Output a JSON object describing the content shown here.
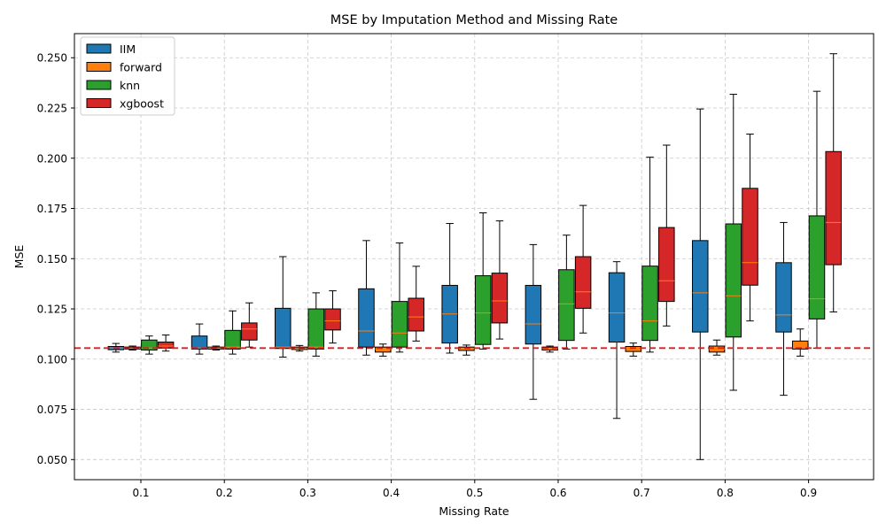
{
  "chart_data": {
    "type": "box",
    "title": "MSE by Imputation Method and Missing Rate",
    "xlabel": "Missing Rate",
    "ylabel": "MSE",
    "categories": [
      "0.1",
      "0.2",
      "0.3",
      "0.4",
      "0.5",
      "0.6",
      "0.7",
      "0.8",
      "0.9"
    ],
    "ylim": [
      0.04,
      0.262
    ],
    "yticks": [
      "0.050",
      "0.075",
      "0.100",
      "0.125",
      "0.150",
      "0.175",
      "0.200",
      "0.225",
      "0.250"
    ],
    "grid": true,
    "legend_position": "top-left",
    "median_color": "#ff7f0e",
    "reference_line": {
      "y": 0.1055,
      "color": "#e31a1c",
      "style": "dashed"
    },
    "series": [
      {
        "name": "IIM",
        "color": "#1f77b4",
        "boxes": [
          {
            "whislo": 0.1035,
            "q1": 0.1047,
            "med": 0.1055,
            "q3": 0.1063,
            "whishi": 0.1078
          },
          {
            "whislo": 0.1025,
            "q1": 0.105,
            "med": 0.1055,
            "q3": 0.1115,
            "whishi": 0.1175
          },
          {
            "whislo": 0.101,
            "q1": 0.1053,
            "med": 0.106,
            "q3": 0.1253,
            "whishi": 0.151
          },
          {
            "whislo": 0.102,
            "q1": 0.106,
            "med": 0.114,
            "q3": 0.135,
            "whishi": 0.159
          },
          {
            "whislo": 0.103,
            "q1": 0.108,
            "med": 0.1225,
            "q3": 0.1367,
            "whishi": 0.1675
          },
          {
            "whislo": 0.08,
            "q1": 0.1075,
            "med": 0.1175,
            "q3": 0.1367,
            "whishi": 0.157
          },
          {
            "whislo": 0.0705,
            "q1": 0.1085,
            "med": 0.123,
            "q3": 0.143,
            "whishi": 0.1485
          },
          {
            "whislo": 0.05,
            "q1": 0.1135,
            "med": 0.133,
            "q3": 0.159,
            "whishi": 0.2245
          },
          {
            "whislo": 0.082,
            "q1": 0.1135,
            "med": 0.122,
            "q3": 0.148,
            "whishi": 0.168
          }
        ]
      },
      {
        "name": "forward",
        "color": "#ff7f0e",
        "boxes": [
          {
            "whislo": 0.1045,
            "q1": 0.105,
            "med": 0.1055,
            "q3": 0.106,
            "whishi": 0.1065
          },
          {
            "whislo": 0.1045,
            "q1": 0.105,
            "med": 0.1055,
            "q3": 0.106,
            "whishi": 0.1065
          },
          {
            "whislo": 0.104,
            "q1": 0.1048,
            "med": 0.1053,
            "q3": 0.106,
            "whishi": 0.1068
          },
          {
            "whislo": 0.1015,
            "q1": 0.1035,
            "med": 0.105,
            "q3": 0.106,
            "whishi": 0.1075
          },
          {
            "whislo": 0.102,
            "q1": 0.1043,
            "med": 0.1053,
            "q3": 0.106,
            "whishi": 0.107
          },
          {
            "whislo": 0.1035,
            "q1": 0.1045,
            "med": 0.1053,
            "q3": 0.106,
            "whishi": 0.1065
          },
          {
            "whislo": 0.1015,
            "q1": 0.1038,
            "med": 0.1053,
            "q3": 0.1063,
            "whishi": 0.108
          },
          {
            "whislo": 0.102,
            "q1": 0.1035,
            "med": 0.105,
            "q3": 0.1065,
            "whishi": 0.1095
          },
          {
            "whislo": 0.1015,
            "q1": 0.105,
            "med": 0.1055,
            "q3": 0.109,
            "whishi": 0.115
          }
        ]
      },
      {
        "name": "knn",
        "color": "#2ca02c",
        "boxes": [
          {
            "whislo": 0.1025,
            "q1": 0.1045,
            "med": 0.1055,
            "q3": 0.1095,
            "whishi": 0.1115
          },
          {
            "whislo": 0.1025,
            "q1": 0.105,
            "med": 0.106,
            "q3": 0.1143,
            "whishi": 0.124
          },
          {
            "whislo": 0.1015,
            "q1": 0.105,
            "med": 0.106,
            "q3": 0.125,
            "whishi": 0.133
          },
          {
            "whislo": 0.1035,
            "q1": 0.106,
            "med": 0.113,
            "q3": 0.1287,
            "whishi": 0.1578
          },
          {
            "whislo": 0.105,
            "q1": 0.1073,
            "med": 0.123,
            "q3": 0.1415,
            "whishi": 0.1728
          },
          {
            "whislo": 0.105,
            "q1": 0.1093,
            "med": 0.1275,
            "q3": 0.1445,
            "whishi": 0.1617
          },
          {
            "whislo": 0.1035,
            "q1": 0.1093,
            "med": 0.119,
            "q3": 0.1463,
            "whishi": 0.2005
          },
          {
            "whislo": 0.0845,
            "q1": 0.111,
            "med": 0.1315,
            "q3": 0.1673,
            "whishi": 0.2318
          },
          {
            "whislo": 0.1055,
            "q1": 0.12,
            "med": 0.13,
            "q3": 0.1713,
            "whishi": 0.2333
          }
        ]
      },
      {
        "name": "xgboost",
        "color": "#d62728",
        "boxes": [
          {
            "whislo": 0.104,
            "q1": 0.1055,
            "med": 0.1065,
            "q3": 0.1085,
            "whishi": 0.112
          },
          {
            "whislo": 0.106,
            "q1": 0.1095,
            "med": 0.115,
            "q3": 0.118,
            "whishi": 0.128
          },
          {
            "whislo": 0.108,
            "q1": 0.1145,
            "med": 0.119,
            "q3": 0.125,
            "whishi": 0.134
          },
          {
            "whislo": 0.109,
            "q1": 0.114,
            "med": 0.121,
            "q3": 0.1303,
            "whishi": 0.1462
          },
          {
            "whislo": 0.11,
            "q1": 0.118,
            "med": 0.129,
            "q3": 0.1428,
            "whishi": 0.1688
          },
          {
            "whislo": 0.113,
            "q1": 0.1253,
            "med": 0.1335,
            "q3": 0.151,
            "whishi": 0.1765
          },
          {
            "whislo": 0.1165,
            "q1": 0.1287,
            "med": 0.139,
            "q3": 0.1655,
            "whishi": 0.2065
          },
          {
            "whislo": 0.119,
            "q1": 0.1368,
            "med": 0.148,
            "q3": 0.185,
            "whishi": 0.212
          },
          {
            "whislo": 0.1235,
            "q1": 0.147,
            "med": 0.168,
            "q3": 0.2033,
            "whishi": 0.252
          }
        ]
      }
    ]
  }
}
